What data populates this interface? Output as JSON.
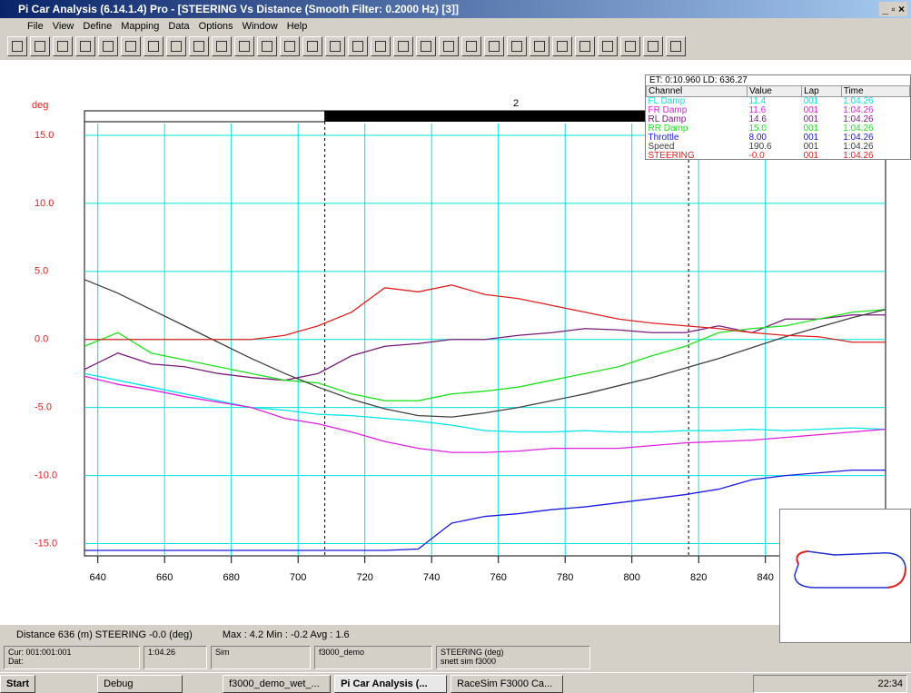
{
  "window": {
    "title": "Pi Car Analysis (6.14.1.4)  Pro - [STEERING Vs Distance (Smooth Filter: 0.2000 Hz) [3]]"
  },
  "menu": [
    "File",
    "View",
    "Define",
    "Mapping",
    "Data",
    "Options",
    "Window",
    "Help"
  ],
  "chart_data": {
    "type": "line",
    "y_label": "deg",
    "lap_label": "2",
    "x": [
      636,
      646,
      656,
      666,
      676,
      686,
      696,
      706,
      716,
      726,
      736,
      746,
      756,
      766,
      776,
      786,
      796,
      806,
      816,
      826,
      836,
      846,
      856,
      866,
      876
    ],
    "series": [
      {
        "name": "FL Damp",
        "color": "#00e5e5",
        "values": [
          -2.5,
          -3.0,
          -3.5,
          -4.0,
          -4.5,
          -5.0,
          -5.2,
          -5.5,
          -5.6,
          -5.8,
          -6.0,
          -6.3,
          -6.7,
          -6.8,
          -6.8,
          -6.7,
          -6.8,
          -6.8,
          -6.7,
          -6.7,
          -6.6,
          -6.7,
          -6.6,
          -6.5,
          -6.6
        ]
      },
      {
        "name": "FR Damp",
        "color": "#e020e0",
        "values": [
          -2.7,
          -3.3,
          -3.7,
          -4.2,
          -4.6,
          -5.0,
          -5.8,
          -6.2,
          -6.8,
          -7.5,
          -8.0,
          -8.3,
          -8.3,
          -8.2,
          -8.0,
          -8.0,
          -8.0,
          -7.8,
          -7.6,
          -7.5,
          -7.4,
          -7.2,
          -7.0,
          -6.8,
          -6.6
        ]
      },
      {
        "name": "RL Damp",
        "color": "#7a1a7a",
        "values": [
          -2.2,
          -1.0,
          -1.8,
          -2.0,
          -2.5,
          -2.8,
          -3.0,
          -2.5,
          -1.2,
          -0.5,
          -0.3,
          0.0,
          0.0,
          0.3,
          0.5,
          0.8,
          0.7,
          0.5,
          0.5,
          1.0,
          0.5,
          1.5,
          1.5,
          1.8,
          1.8
        ]
      },
      {
        "name": "RR Damp",
        "color": "#20e020",
        "values": [
          -0.5,
          0.5,
          -1.0,
          -1.5,
          -2.0,
          -2.5,
          -3.0,
          -3.2,
          -4.0,
          -4.5,
          -4.5,
          -4.0,
          -3.8,
          -3.5,
          -3.0,
          -2.5,
          -2.0,
          -1.2,
          -0.5,
          0.5,
          0.8,
          1.0,
          1.5,
          2.0,
          2.2
        ]
      },
      {
        "name": "Throttle",
        "color": "#1a1ae0",
        "values": [
          -15.5,
          -15.5,
          -15.5,
          -15.5,
          -15.5,
          -15.5,
          -15.5,
          -15.5,
          -15.5,
          -15.5,
          -15.4,
          -13.5,
          -13.0,
          -12.8,
          -12.5,
          -12.3,
          -12.0,
          -11.7,
          -11.4,
          -11.0,
          -10.3,
          -10.0,
          -9.8,
          -9.6,
          -9.6
        ]
      },
      {
        "name": "Speed",
        "color": "#404040",
        "values": [
          4.4,
          3.4,
          2.2,
          1.0,
          -0.2,
          -1.4,
          -2.5,
          -3.5,
          -4.4,
          -5.1,
          -5.6,
          -5.7,
          -5.4,
          -5.0,
          -4.5,
          -4.0,
          -3.4,
          -2.8,
          -2.1,
          -1.4,
          -0.6,
          0.2,
          0.9,
          1.6,
          2.2
        ]
      },
      {
        "name": "STEERING",
        "color": "#e02020",
        "values": [
          0.0,
          0.0,
          0.0,
          0.0,
          0.0,
          0.0,
          0.3,
          1.0,
          2.0,
          3.8,
          3.5,
          4.0,
          3.3,
          3.0,
          2.5,
          2.0,
          1.5,
          1.2,
          1.0,
          0.8,
          0.5,
          0.3,
          0.2,
          -0.2,
          -0.2
        ]
      }
    ],
    "cursors": [
      708,
      817
    ],
    "xlim": [
      636,
      876
    ],
    "ylim": [
      -15.9,
      16.8
    ],
    "xticks": [
      640,
      660,
      680,
      700,
      720,
      740,
      760,
      780,
      800,
      820,
      840
    ],
    "yticks": [
      {
        "value": 15,
        "label": "15.0"
      },
      {
        "value": 10,
        "label": "10.0"
      },
      {
        "value": 5,
        "label": "5.0"
      },
      {
        "value": 0,
        "label": "0.0"
      },
      {
        "value": -5,
        "label": "-5.0"
      },
      {
        "value": -10,
        "label": "-10.0"
      },
      {
        "value": -15,
        "label": "-15.0"
      }
    ],
    "grid": true
  },
  "readout": {
    "header": "ET:  0:10.960   LD:  636.27",
    "columns": [
      "Channel",
      "Value",
      "Lap",
      "Time"
    ],
    "rows": [
      {
        "value": "11.4",
        "lap": "001",
        "time": "1:04.26"
      },
      {
        "value": "11.6",
        "lap": "001",
        "time": "1:04.26"
      },
      {
        "value": "14.6",
        "lap": "001",
        "time": "1:04.26"
      },
      {
        "value": "15.0",
        "lap": "001",
        "time": "1:04.26"
      },
      {
        "value": "8.00",
        "lap": "001",
        "time": "1:04.26"
      },
      {
        "value": "190.6",
        "lap": "001",
        "time": "1:04.26"
      },
      {
        "value": "-0.0",
        "lap": "001",
        "time": "1:04.26"
      }
    ]
  },
  "status": {
    "cursor": "Distance 636 (m)  STEERING -0.0 (deg)",
    "stats": "Max : 4.2  Min : -0.2  Avg : 1.6",
    "panels": [
      "Cur: 001:001:001",
      "Dat:",
      "1:04.26",
      "Sim",
      "f3000_demo",
      "STEERING (deg)",
      "snett sim f3000"
    ]
  },
  "taskbar": {
    "start": "Start",
    "items": [
      "Debug",
      "f3000_demo_wet_...",
      "Pi Car Analysis (...",
      "RaceSim F3000 Ca..."
    ],
    "clock": "22:34"
  }
}
